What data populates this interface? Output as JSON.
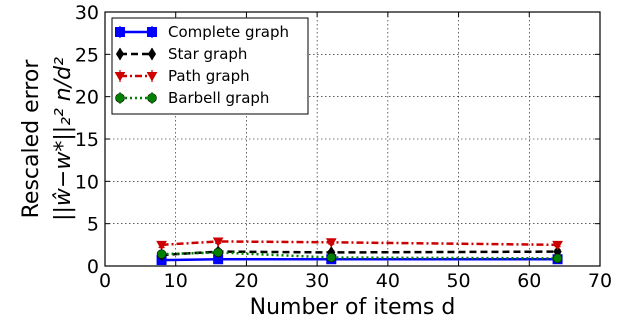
{
  "chart_data": {
    "type": "line",
    "xlabel": "Number of items d",
    "ylabel_line1": "Rescaled error",
    "ylabel_line2": "||ŵ−w*||₂² n/d²",
    "xlim": [
      0,
      70
    ],
    "ylim": [
      0,
      30
    ],
    "xticks": [
      "0",
      "10",
      "20",
      "30",
      "40",
      "50",
      "60",
      "70"
    ],
    "yticks": [
      "0",
      "5",
      "10",
      "15",
      "20",
      "25",
      "30"
    ],
    "grid": true,
    "legend_position": "top-left",
    "x": [
      8,
      16,
      32,
      64
    ],
    "series": [
      {
        "name": "Complete graph",
        "values": [
          0.7,
          0.8,
          0.8,
          0.8
        ],
        "errors": [
          0.15,
          0.1,
          0.1,
          0.1
        ],
        "color": "#0000ff",
        "style": "solid",
        "marker": "square"
      },
      {
        "name": "Star graph",
        "values": [
          1.3,
          1.7,
          1.6,
          1.7
        ],
        "errors": [
          0.3,
          0.2,
          0.2,
          0.2
        ],
        "color": "#000000",
        "style": "dashed",
        "marker": "diamond"
      },
      {
        "name": "Path graph",
        "values": [
          2.5,
          2.9,
          2.8,
          2.5
        ],
        "errors": [
          0.3,
          0.2,
          0.2,
          0.2
        ],
        "color": "#cc0000",
        "style": "dashdot",
        "marker": "triangle-down"
      },
      {
        "name": "Barbell graph",
        "values": [
          1.4,
          1.6,
          1.0,
          0.9
        ],
        "errors": [
          0.2,
          0.2,
          0.2,
          0.1
        ],
        "color": "#008000",
        "style": "dotted",
        "marker": "circle"
      }
    ]
  }
}
